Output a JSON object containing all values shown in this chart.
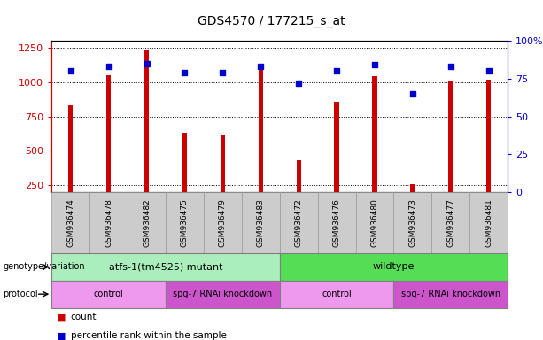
{
  "title": "GDS4570 / 177215_s_at",
  "samples": [
    "GSM936474",
    "GSM936478",
    "GSM936482",
    "GSM936475",
    "GSM936479",
    "GSM936483",
    "GSM936472",
    "GSM936476",
    "GSM936480",
    "GSM936473",
    "GSM936477",
    "GSM936481"
  ],
  "counts": [
    830,
    1050,
    1230,
    630,
    615,
    1090,
    430,
    855,
    1040,
    255,
    1010,
    1015
  ],
  "percentile_ranks": [
    80,
    83,
    85,
    79,
    79,
    83,
    72,
    80,
    84,
    65,
    83,
    80
  ],
  "ylim_left": [
    200,
    1300
  ],
  "ylim_right": [
    0,
    100
  ],
  "yticks_left": [
    250,
    500,
    750,
    1000,
    1250
  ],
  "yticks_right": [
    0,
    25,
    50,
    75,
    100
  ],
  "bar_color": "#cc0000",
  "dot_color": "#0000cc",
  "dot_size": 5,
  "bar_width": 0.12,
  "genotype_groups": [
    {
      "label": "atfs-1(tm4525) mutant",
      "start": 0,
      "end": 6,
      "color": "#aaeebb"
    },
    {
      "label": "wildtype",
      "start": 6,
      "end": 12,
      "color": "#55dd55"
    }
  ],
  "protocol_groups": [
    {
      "label": "control",
      "start": 0,
      "end": 3,
      "color": "#ee99ee"
    },
    {
      "label": "spg-7 RNAi knockdown",
      "start": 3,
      "end": 6,
      "color": "#cc55cc"
    },
    {
      "label": "control",
      "start": 6,
      "end": 9,
      "color": "#ee99ee"
    },
    {
      "label": "spg-7 RNAi knockdown",
      "start": 9,
      "end": 12,
      "color": "#cc55cc"
    }
  ],
  "xlabel_bg_color": "#cccccc",
  "xlabel_cell_edge_color": "#999999",
  "left_label_color": "#cc0000",
  "right_label_color": "#0000cc",
  "grid_color": "black",
  "grid_linestyle": "dotted",
  "grid_linewidth": 0.7
}
